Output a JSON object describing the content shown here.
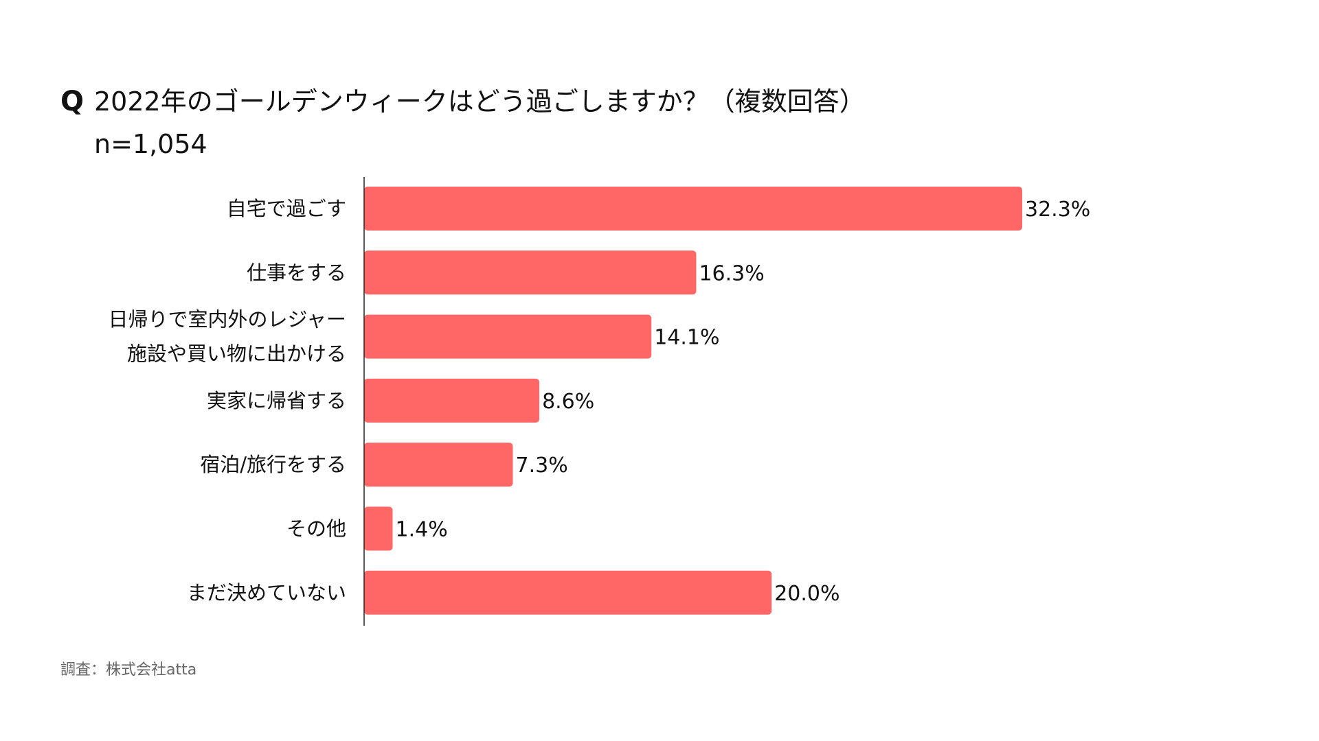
{
  "header": {
    "q_mark": "Q",
    "title": "2022年のゴールデンウィークはどう過ごしますか？（複数回答）",
    "subtitle": "n=1,054"
  },
  "source": "調査：株式会社atta",
  "colors": {
    "bar": "#ff6666",
    "axis": "#222222"
  },
  "chart_data": {
    "type": "bar",
    "orientation": "horizontal",
    "title": "2022年のゴールデンウィークはどう過ごしますか？（複数回答）",
    "categories": [
      [
        "自宅で過ごす"
      ],
      [
        "仕事をする"
      ],
      [
        "日帰りで室内外のレジャー",
        "施設や買い物に出かける"
      ],
      [
        "実家に帰省する"
      ],
      [
        "宿泊/旅行をする"
      ],
      [
        "その他"
      ],
      [
        "まだ決めていない"
      ]
    ],
    "values": [
      32.3,
      16.3,
      14.1,
      8.6,
      7.3,
      1.4,
      20.0
    ],
    "value_labels": [
      "32.3%",
      "16.3%",
      "14.1%",
      "8.6%",
      "7.3%",
      "1.4%",
      "20.0%"
    ],
    "xlim": [
      0,
      32.3
    ],
    "grid": false,
    "legend": "none"
  }
}
